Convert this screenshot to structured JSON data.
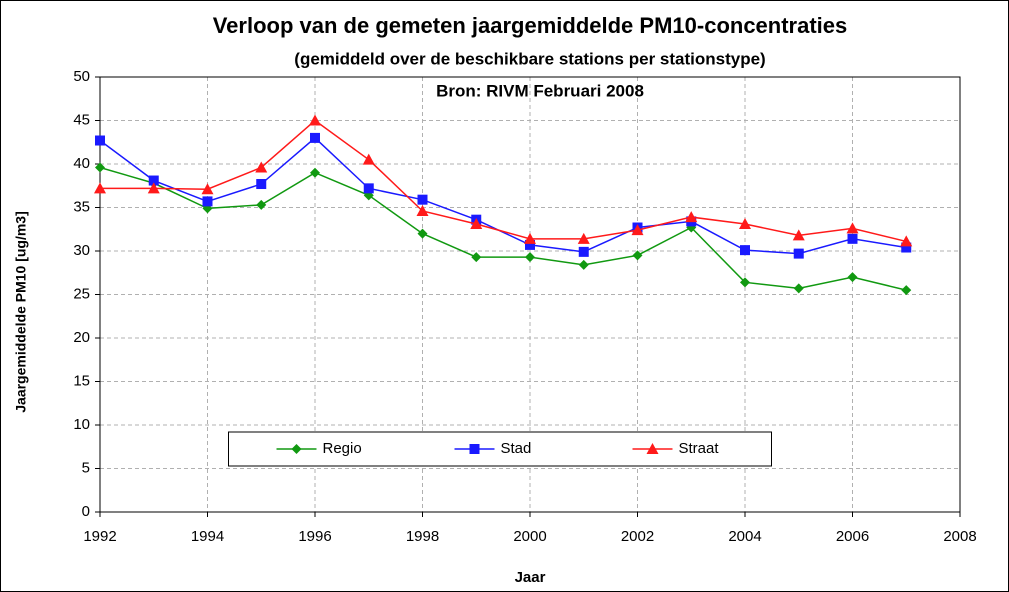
{
  "chart_data": {
    "type": "line",
    "title": "Verloop van de gemeten jaargemiddelde PM10-concentraties",
    "subtitle": "(gemiddeld over de beschikbare stations per stationstype)",
    "annotation": "Bron: RIVM Februari 2008",
    "xlabel": "Jaar",
    "ylabel": "Jaargemiddelde PM10 [ug/m3]",
    "x": [
      1992,
      1993,
      1994,
      1995,
      1996,
      1997,
      1998,
      1999,
      2000,
      2001,
      2002,
      2003,
      2004,
      2005,
      2006,
      2007
    ],
    "series": [
      {
        "name": "Regio",
        "color": "#119911",
        "marker": "diamond",
        "values": [
          39.6,
          37.8,
          34.9,
          35.3,
          39.0,
          36.4,
          32.0,
          29.3,
          29.3,
          28.4,
          29.5,
          32.7,
          26.4,
          25.7,
          27.0,
          25.5
        ]
      },
      {
        "name": "Stad",
        "color": "#1a1aff",
        "marker": "square",
        "values": [
          42.7,
          38.1,
          35.7,
          37.7,
          43.0,
          37.2,
          35.9,
          33.6,
          30.7,
          29.9,
          32.7,
          33.4,
          30.1,
          29.7,
          31.4,
          30.4
        ]
      },
      {
        "name": "Straat",
        "color": "#ff1a1a",
        "marker": "triangle",
        "values": [
          37.2,
          37.2,
          37.1,
          39.6,
          45.0,
          40.5,
          34.6,
          33.1,
          31.4,
          31.4,
          32.4,
          33.9,
          33.1,
          31.8,
          32.6,
          31.1
        ]
      }
    ],
    "xlim": [
      1992,
      2008
    ],
    "xticks": [
      1992,
      1994,
      1996,
      1998,
      2000,
      2002,
      2004,
      2006,
      2008
    ],
    "ylim": [
      0,
      50
    ],
    "yticks": [
      0,
      5,
      10,
      15,
      20,
      25,
      30,
      35,
      40,
      45,
      50
    ],
    "grid": true,
    "legend": "lower center"
  }
}
